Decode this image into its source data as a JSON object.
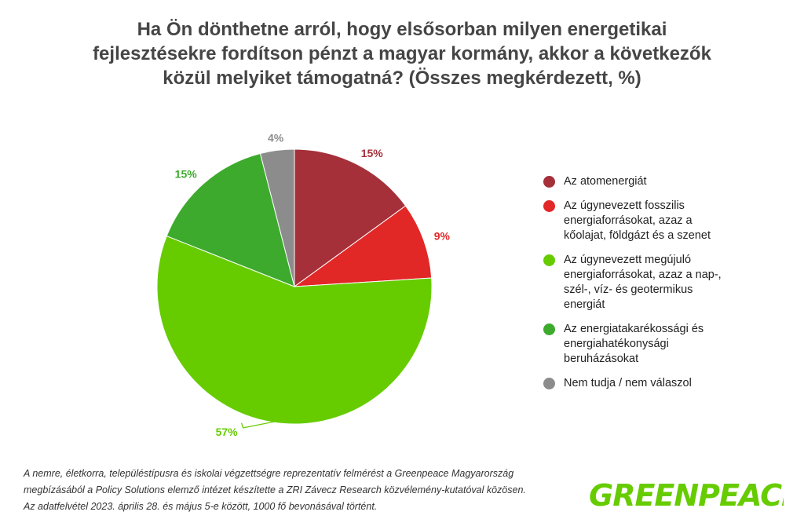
{
  "title": {
    "line1": "Ha Ön dönthetne arról, hogy elsősorban milyen energetikai",
    "line2": "fejlesztésekre fordítson pénzt a magyar kormány, akkor a következők",
    "line3": "közül melyiket támogatná? (Összes megkérdezett, %)"
  },
  "chart_data": {
    "type": "pie",
    "title": "Ha Ön dönthetne arról, hogy elsősorban milyen energetikai fejlesztésekre fordítson pénzt a magyar kormány, akkor a következők közül melyiket támogatná? (Összes megkérdezett, %)",
    "legend_position": "right",
    "slices": [
      {
        "label": "Az atomenergiát",
        "value": 15,
        "value_label": "15%",
        "color": "#A5303A"
      },
      {
        "label": "Az úgynevezett fosszilis\nenergiaforrásokat, azaz a\nkőolajat, földgázt és a szenet",
        "value": 9,
        "value_label": "9%",
        "color": "#E22727"
      },
      {
        "label": "Az úgynevezett megújuló\nenergiaforrásokat, azaz a nap-,\nszél-, víz- és geotermikus\nenergiát",
        "value": 57,
        "value_label": "57%",
        "color": "#66CC00"
      },
      {
        "label": "Az energiatakarékossági és\nenergiahatékonysági\nberuházásokat",
        "value": 15,
        "value_label": "15%",
        "color": "#3DAA2E"
      },
      {
        "label": "Nem tudja / nem válaszol",
        "value": 4,
        "value_label": "4%",
        "color": "#8C8C8C"
      }
    ]
  },
  "footnote": {
    "line1": "A nemre, életkorra, településtípusra és iskolai végzettségre reprezentatív felmérést a Greenpeace Magyarország",
    "line2": "megbízásából a Policy Solutions elemző intézet készítette a ZRI Závecz Research közvélemény-kutatóval közösen.",
    "line3": "Az adatfelvétel 2023. április 28. és május 5-e között, 1000 fő bevonásával történt."
  },
  "logo": {
    "text": "GREENPEACE",
    "color": "#66CC00"
  }
}
